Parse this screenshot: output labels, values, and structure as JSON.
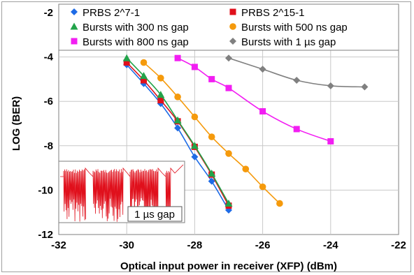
{
  "chart_data": {
    "type": "scatter",
    "xlabel": "Optical input power in receiver (XFP) (dBm)",
    "ylabel": "LOG (BER)",
    "xlim": [
      -32,
      -22
    ],
    "ylim": [
      -12,
      -2
    ],
    "xticks": [
      "-32",
      "-30",
      "-28",
      "-26",
      "-24",
      "-22"
    ],
    "yticks": [
      "-12",
      "-10",
      "-8",
      "-6",
      "-4",
      "-2"
    ],
    "grid": true,
    "legend_position": "top",
    "series": [
      {
        "name": "PRBS 2^7-1",
        "color": "#1e6be6",
        "marker": "diamond",
        "x": [
          -30,
          -29.5,
          -29,
          -28.5,
          -28,
          -27.5,
          -27
        ],
        "y": [
          -4.35,
          -5.2,
          -6.1,
          -7.2,
          -8.5,
          -9.6,
          -10.9
        ]
      },
      {
        "name": "PRBS 2^15-1",
        "color": "#e0101c",
        "marker": "square",
        "x": [
          -30,
          -29.5,
          -29,
          -28.5,
          -28,
          -27.5,
          -27
        ],
        "y": [
          -4.25,
          -5.05,
          -5.95,
          -6.9,
          -8.05,
          -9.3,
          -10.7
        ]
      },
      {
        "name": "Bursts with 300 ns gap",
        "color": "#22a34a",
        "marker": "triangle",
        "x": [
          -30,
          -29.5,
          -29,
          -28.5,
          -28,
          -27.5,
          -27
        ],
        "y": [
          -4.05,
          -4.85,
          -5.7,
          -6.85,
          -8.0,
          -9.25,
          -10.6
        ]
      },
      {
        "name": "Bursts with 500 ns gap",
        "color": "#f59a0c",
        "marker": "circle",
        "x": [
          -29.5,
          -29,
          -28.5,
          -28,
          -27.5,
          -27,
          -26.5,
          -26,
          -25.5
        ],
        "y": [
          -4.25,
          -4.95,
          -5.8,
          -6.7,
          -7.6,
          -8.35,
          -9.05,
          -9.85,
          -10.6
        ]
      },
      {
        "name": "Bursts with 800 ns gap",
        "color": "#f21ef2",
        "marker": "square",
        "x": [
          -28.5,
          -28,
          -27.5,
          -27,
          -26,
          -25,
          -24
        ],
        "y": [
          -4.05,
          -4.45,
          -5.0,
          -5.4,
          -6.45,
          -7.25,
          -7.8
        ]
      },
      {
        "name": "Bursts with 1 µs gap",
        "color": "#808080",
        "marker": "diamond",
        "x": [
          -27,
          -26,
          -25,
          -24,
          -23
        ],
        "y": [
          -4.05,
          -4.55,
          -5.05,
          -5.3,
          -5.35
        ]
      }
    ],
    "inset": {
      "label": "1 µs gap",
      "trace_color": "#e0101c"
    }
  }
}
